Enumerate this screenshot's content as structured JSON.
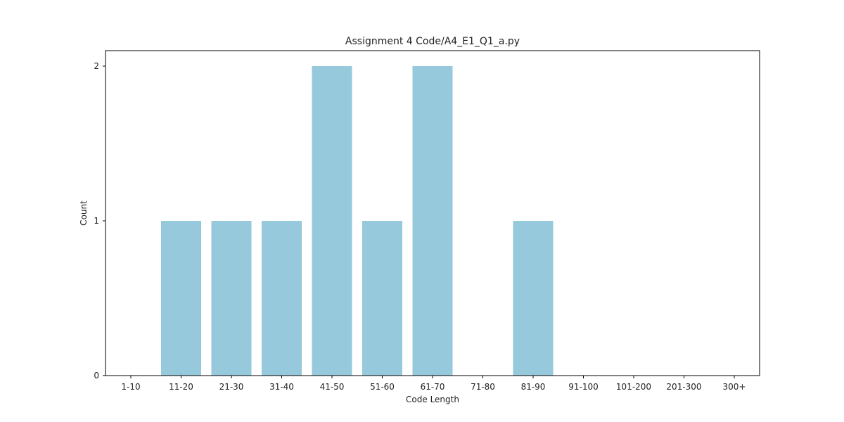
{
  "chart_data": {
    "type": "bar",
    "title": "Assignment 4 Code/A4_E1_Q1_a.py",
    "xlabel": "Code Length",
    "ylabel": "Count",
    "categories": [
      "1-10",
      "11-20",
      "21-30",
      "31-40",
      "41-50",
      "51-60",
      "61-70",
      "71-80",
      "81-90",
      "91-100",
      "101-200",
      "201-300",
      "300+"
    ],
    "values": [
      0,
      1,
      1,
      1,
      2,
      1,
      2,
      0,
      1,
      0,
      0,
      0,
      0
    ],
    "yticks": [
      "0",
      "1",
      "2"
    ],
    "ylim": [
      0,
      2.1
    ],
    "grid": false,
    "bar_color": "#96c9dc"
  }
}
